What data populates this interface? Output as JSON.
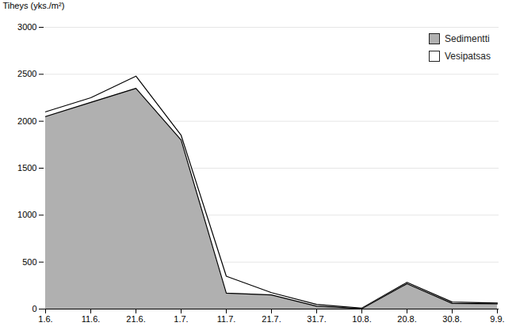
{
  "chart_data": {
    "type": "area",
    "categories": [
      "1.6.",
      "11.6.",
      "21.6.",
      "1.7.",
      "11.7.",
      "21.7.",
      "31.7.",
      "10.8.",
      "20.8.",
      "30.8.",
      "9.9."
    ],
    "series": [
      {
        "name": "Sedimentti",
        "color": "#b0b0b0",
        "values": [
          2050,
          2200,
          2350,
          1800,
          170,
          150,
          30,
          5,
          270,
          60,
          55
        ]
      },
      {
        "name": "Vesipatsas",
        "color": "#ffffff",
        "values": [
          2100,
          2250,
          2480,
          1850,
          350,
          175,
          50,
          10,
          285,
          75,
          65
        ]
      }
    ],
    "ylabel": "Tiheys (yks./m²)",
    "ylim": [
      0,
      3000
    ],
    "yticks": [
      0,
      500,
      1000,
      1500,
      2000,
      2500,
      3000
    ],
    "stacked": false,
    "grid": true,
    "legend": "upper right"
  }
}
